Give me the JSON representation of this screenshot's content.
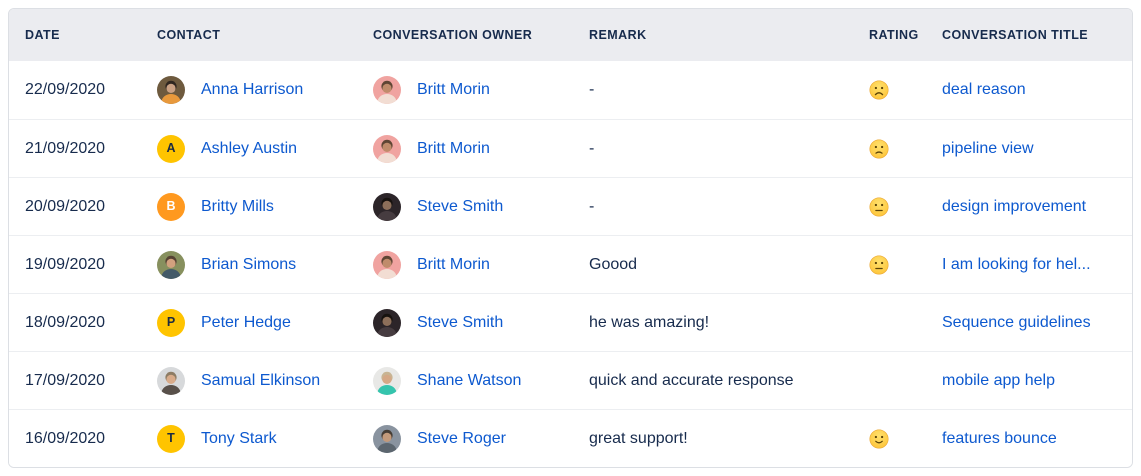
{
  "colors": {
    "link": "#0d59cf",
    "text": "#172b4d",
    "header_bg": "#ebecf0",
    "border": "#dcdfe4",
    "row_divider": "#eceef1",
    "avatar_yellow": "#FFC400",
    "avatar_orange": "#FF991F",
    "emoji_yellow": "#FEC83D"
  },
  "table": {
    "columns": [
      {
        "key": "date",
        "label": "DATE"
      },
      {
        "key": "contact",
        "label": "CONTACT"
      },
      {
        "key": "owner",
        "label": "CONVERSATION OWNER"
      },
      {
        "key": "remark",
        "label": "REMARK"
      },
      {
        "key": "rating",
        "label": "RATING"
      },
      {
        "key": "title",
        "label": "CONVERSATION TITLE"
      }
    ],
    "rows": [
      {
        "date": "22/09/2020",
        "contact": {
          "name": "Anna Harrison",
          "avatar": {
            "kind": "photo",
            "bg": "#6e5a3e",
            "hair": "#2f2620",
            "skin": "#caa184",
            "shirt": "#e8993c"
          }
        },
        "owner": {
          "name": "Britt Morin",
          "avatar": {
            "kind": "photo",
            "bg": "#f0a3a0",
            "hair": "#5f4534",
            "skin": "#c08b6b",
            "shirt": "#f2ddd3"
          }
        },
        "remark": "-",
        "rating": "frowning-face",
        "title": "deal reason"
      },
      {
        "date": "21/09/2020",
        "contact": {
          "name": "Ashley Austin",
          "avatar": {
            "kind": "letter",
            "letter": "A",
            "bg": "#FFC400",
            "fg": "#1c2b42"
          }
        },
        "owner": {
          "name": "Britt Morin",
          "avatar": {
            "kind": "photo",
            "bg": "#f0a3a0",
            "hair": "#5f4534",
            "skin": "#c08b6b",
            "shirt": "#f2ddd3"
          }
        },
        "remark": "-",
        "rating": "slightly-frowning-face",
        "title": "pipeline view"
      },
      {
        "date": "20/09/2020",
        "contact": {
          "name": "Britty Mills",
          "avatar": {
            "kind": "letter",
            "letter": "B",
            "bg": "#FF991F",
            "fg": "#ffffff"
          }
        },
        "owner": {
          "name": "Steve Smith",
          "avatar": {
            "kind": "photo",
            "bg": "#2c2529",
            "hair": "#17120f",
            "skin": "#8d6f5a",
            "shirt": "#463c40"
          }
        },
        "remark": "-",
        "rating": "neutral-face",
        "title": "design improvement"
      },
      {
        "date": "19/09/2020",
        "contact": {
          "name": "Brian Simons",
          "avatar": {
            "kind": "photo",
            "bg": "#87905e",
            "hair": "#564233",
            "skin": "#d2a17e",
            "shirt": "#435a68"
          }
        },
        "owner": {
          "name": "Britt Morin",
          "avatar": {
            "kind": "photo",
            "bg": "#f0a3a0",
            "hair": "#5f4534",
            "skin": "#c08b6b",
            "shirt": "#f2ddd3"
          }
        },
        "remark": "Goood",
        "rating": "neutral-face",
        "title": "I am looking for hel..."
      },
      {
        "date": "18/09/2020",
        "contact": {
          "name": "Peter Hedge",
          "avatar": {
            "kind": "letter",
            "letter": "P",
            "bg": "#FFC400",
            "fg": "#1c2b42"
          }
        },
        "owner": {
          "name": "Steve Smith",
          "avatar": {
            "kind": "photo",
            "bg": "#2c2529",
            "hair": "#17120f",
            "skin": "#8d6f5a",
            "shirt": "#463c40"
          }
        },
        "remark": "he was amazing!",
        "rating": null,
        "title": "Sequence guidelines"
      },
      {
        "date": "17/09/2020",
        "contact": {
          "name": "Samual Elkinson",
          "avatar": {
            "kind": "photo",
            "bg": "#d7d9db",
            "hair": "#8d7c64",
            "skin": "#d8ab8a",
            "shirt": "#58504a"
          }
        },
        "owner": {
          "name": "Shane Watson",
          "avatar": {
            "kind": "photo",
            "bg": "#e8e8e6",
            "hair": "#c8b493",
            "skin": "#d5a886",
            "shirt": "#35c4ad"
          }
        },
        "remark": "quick and accurate response",
        "rating": null,
        "title": "mobile app help"
      },
      {
        "date": "16/09/2020",
        "contact": {
          "name": "Tony Stark",
          "avatar": {
            "kind": "letter",
            "letter": "T",
            "bg": "#FFC400",
            "fg": "#1c2b42"
          }
        },
        "owner": {
          "name": "Steve Roger",
          "avatar": {
            "kind": "photo",
            "bg": "#89939f",
            "hair": "#463d35",
            "skin": "#c39a7b",
            "shirt": "#5c666f"
          }
        },
        "remark": "great support!",
        "rating": "slightly-smiling-face",
        "title": "features bounce"
      }
    ]
  }
}
